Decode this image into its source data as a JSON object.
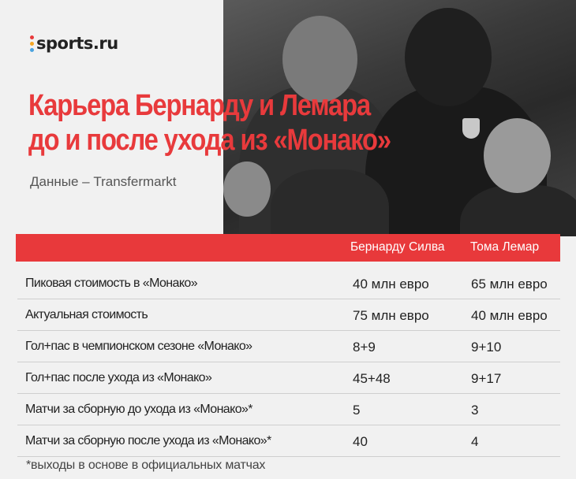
{
  "brand": {
    "name": "sports.ru",
    "dot_colors": [
      "#e8393b",
      "#f5a623",
      "#4aa3df"
    ]
  },
  "title_lines": [
    "Карьера Бернарду и Лемара",
    "до и после ухода из «Монако»"
  ],
  "subtitle": "Данные – Transfermarkt",
  "colors": {
    "accent": "#e8393b",
    "background": "#f1f1f1"
  },
  "table": {
    "columns": [
      "Бернарду Силва",
      "Тома Лемар"
    ],
    "rows": [
      {
        "label": "Пиковая стоимость в «Монако»",
        "values": [
          "40 млн евро",
          "65 млн евро"
        ]
      },
      {
        "label": "Актуальная стоимость",
        "values": [
          "75 млн евро",
          "40 млн евро"
        ]
      },
      {
        "label": "Гол+пас в чемпионском сезоне «Монако»",
        "values": [
          "8+9",
          "9+10"
        ]
      },
      {
        "label": "Гол+пас после ухода из «Монако»",
        "values": [
          "45+48",
          "9+17"
        ]
      },
      {
        "label": "Матчи за сборную до ухода из «Монако»*",
        "values": [
          "5",
          "3"
        ]
      },
      {
        "label": "Матчи за сборную после ухода из «Монако»*",
        "values": [
          "40",
          "4"
        ]
      }
    ]
  },
  "footnote": "*выходы в основе в официальных матчах"
}
